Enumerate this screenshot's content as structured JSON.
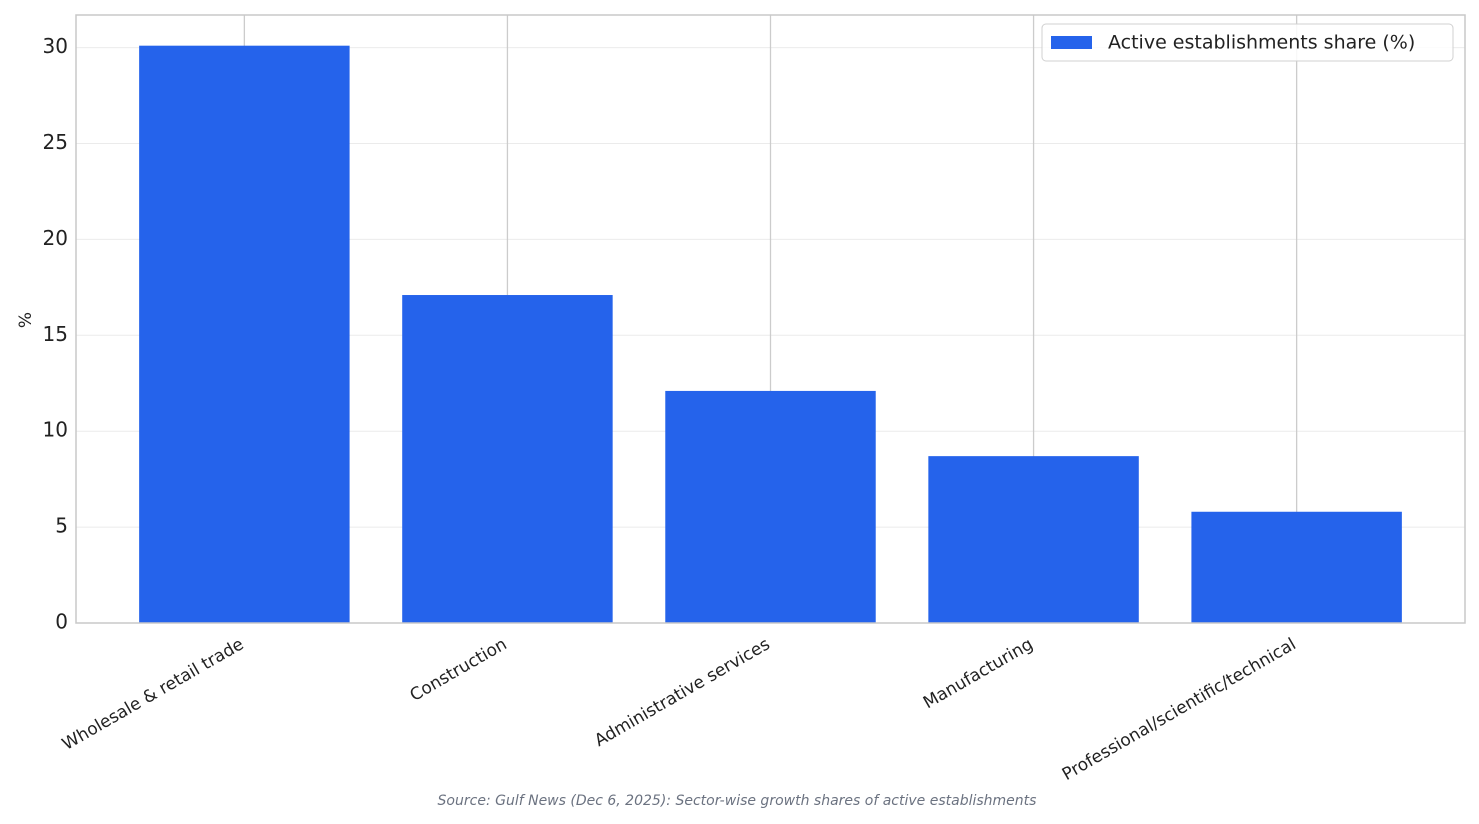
{
  "chart_data": {
    "type": "bar",
    "y_label": "%",
    "categories": [
      "Wholesale & retail trade",
      "Construction",
      "Administrative services",
      "Manufacturing",
      "Professional/scientific/technical"
    ],
    "series": [
      {
        "name": "Active establishments share (%)",
        "color": "#2563eb",
        "values": [
          30.1,
          17.1,
          12.1,
          8.7,
          5.8
        ]
      }
    ],
    "ylim": [
      0,
      31.7
    ],
    "yticks": [
      0,
      5,
      10,
      15,
      20,
      25,
      30
    ],
    "grid": true,
    "legend": "upper right",
    "source": "Source: Gulf News (Dec 6, 2025): Sector-wise growth shares of active establishments"
  }
}
